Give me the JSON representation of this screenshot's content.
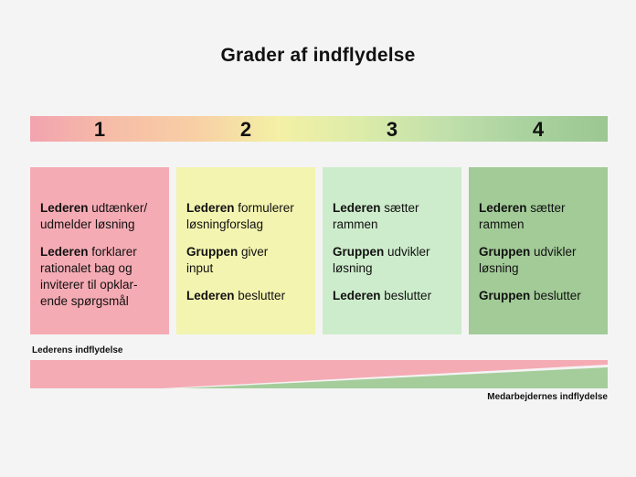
{
  "title": "Grader af indflydelse",
  "colors": {
    "background": "#f4f4f4",
    "text": "#111111",
    "scale_gradient": [
      "#f2a3af",
      "#f6bda7",
      "#f8cfa5",
      "#f4f0a5",
      "#dceca9",
      "#c2e0ab",
      "#a9d29f",
      "#9cc791"
    ],
    "leader_wedge": "#f5abb4",
    "employee_wedge": "#a5cd9b"
  },
  "scale": {
    "levels": [
      "1",
      "2",
      "3",
      "4"
    ]
  },
  "columns": [
    {
      "level": "1",
      "color": "#f5abb4",
      "paragraphs": [
        {
          "bold": "Lederen",
          "rest": "udtænker/\nudmelder løsning"
        },
        {
          "bold": "Lederen",
          "rest": "forklarer\nrationalet bag og\ninviterer til opklar-\nende spørgsmål"
        }
      ]
    },
    {
      "level": "2",
      "color": "#f3f4af",
      "paragraphs": [
        {
          "bold": "Lederen",
          "rest": "formulerer\nløsningforslag"
        },
        {
          "bold": "Gruppen",
          "rest": "giver\ninput"
        },
        {
          "bold": "Lederen",
          "rest": "beslutter"
        }
      ]
    },
    {
      "level": "3",
      "color": "#cdeccb",
      "paragraphs": [
        {
          "bold": "Lederen",
          "rest": "sætter\nrammen"
        },
        {
          "bold": "Gruppen",
          "rest": "udvikler\nløsning"
        },
        {
          "bold": "Lederen",
          "rest": "beslutter"
        }
      ]
    },
    {
      "level": "4",
      "color": "#a2cb97",
      "paragraphs": [
        {
          "bold": "Lederen",
          "rest": "sætter\nrammen"
        },
        {
          "bold": "Gruppen",
          "rest": "udvikler\nløsning"
        },
        {
          "bold": "Gruppen",
          "rest": "beslutter"
        }
      ]
    }
  ],
  "footer": {
    "leader_label": "Lederens indflydelse",
    "employee_label": "Medarbejdernes indflydelse"
  }
}
